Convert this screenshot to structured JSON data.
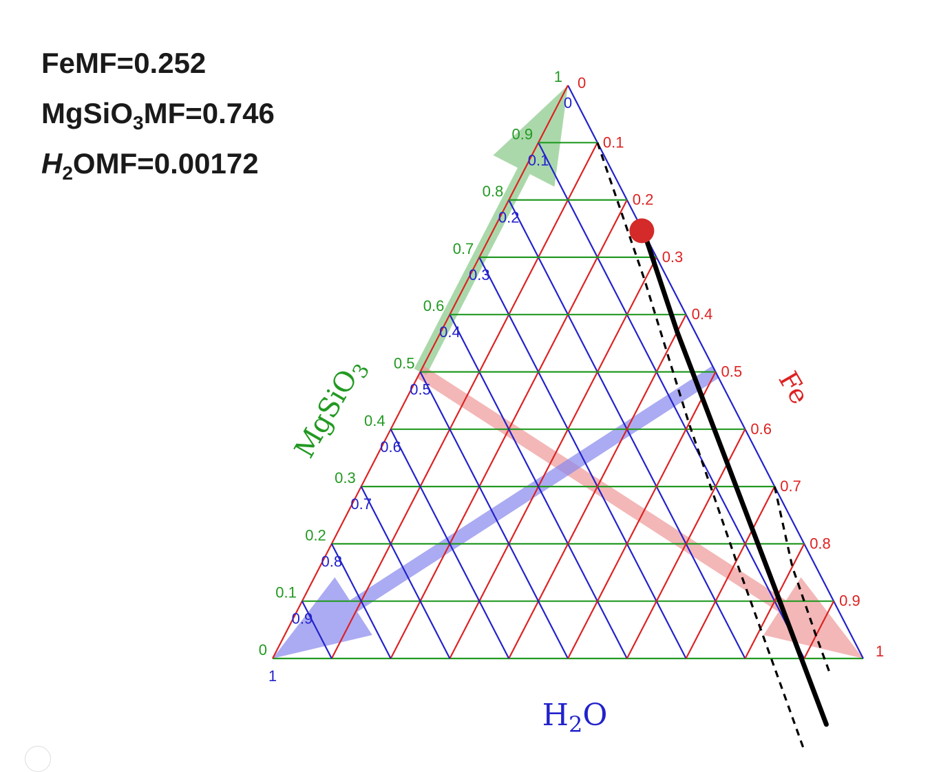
{
  "readout": {
    "fe_label": "FeMF=",
    "fe_value": "0.252",
    "mg_label_main": "MgSiO",
    "mg_label_sub": "3",
    "mg_label_rest": "MF=",
    "mg_value": "0.746",
    "h2o_label_h": "H",
    "h2o_label_sub": "2",
    "h2o_label_rest": "OMF=",
    "h2o_value": "0.00172"
  },
  "chart_data": {
    "type": "ternary",
    "axes": {
      "MgSiO3": {
        "label": "MgSiO3",
        "label_main": "MgSiO",
        "label_sub": "3",
        "color": "#229922",
        "range": [
          0,
          1
        ]
      },
      "Fe": {
        "label": "Fe",
        "color": "#dd2222",
        "range": [
          0,
          1
        ]
      },
      "H2O": {
        "label": "H2O",
        "label_main": "H",
        "label_sub": "2",
        "label_rest": "O",
        "color": "#2222cc",
        "range": [
          0,
          1
        ]
      }
    },
    "ticks": {
      "MgSiO3": [
        "0",
        "0.1",
        "0.2",
        "0.3",
        "0.4",
        "0.5",
        "0.6",
        "0.7",
        "0.8",
        "0.9",
        "1"
      ],
      "Fe": [
        "0",
        "0.1",
        "0.2",
        "0.3",
        "0.4",
        "0.5",
        "0.6",
        "0.7",
        "0.8",
        "0.9",
        "1"
      ],
      "H2O": [
        "1",
        "0.9",
        "0.8",
        "0.7",
        "0.6",
        "0.5",
        "0.4",
        "0.3",
        "0.2",
        "0.1",
        "0"
      ]
    },
    "grid": true,
    "point": {
      "MgSiO3": 0.746,
      "Fe": 0.252,
      "H2O": 0.00172,
      "color": "#d42a2a"
    },
    "solid_curve": [
      {
        "H2O": 0.0,
        "Fe": 0.26
      },
      {
        "H2O": 0.03,
        "Fe": 0.4
      },
      {
        "H2O": 0.06,
        "Fe": 0.6
      },
      {
        "H2O": 0.09,
        "Fe": 0.8
      },
      {
        "H2O": 0.12,
        "Fe": 0.995
      }
    ],
    "dashed_curves": [
      [
        {
          "H2O": 0.0,
          "Fe": 0.1
        },
        {
          "H2O": 0.04,
          "Fe": 0.3
        },
        {
          "H2O": 0.09,
          "Fe": 0.5
        },
        {
          "H2O": 0.13,
          "Fe": 0.7
        },
        {
          "H2O": 0.18,
          "Fe": 0.98
        }
      ],
      [
        {
          "H2O": 0.0,
          "Fe": 0.7
        },
        {
          "H2O": 0.04,
          "Fe": 0.8
        },
        {
          "H2O": 0.06,
          "Fe": 0.9
        },
        {
          "H2O": 0.07,
          "Fe": 0.96
        }
      ]
    ],
    "arrows": [
      {
        "axis": "MgSiO3",
        "color": "#88c888",
        "from": {
          "H2O": 0.5,
          "Fe": 0.0
        },
        "to": {
          "H2O": 0.0,
          "Fe": 0.0
        }
      },
      {
        "axis": "Fe",
        "color": "#ee9999",
        "from": {
          "H2O": 0.5,
          "Fe": 0.0
        },
        "to": {
          "H2O": 0.0,
          "Fe": 1.0
        }
      },
      {
        "axis": "H2O",
        "color": "#8888ee",
        "from": {
          "H2O": 0.0,
          "Fe": 0.5
        },
        "to": {
          "H2O": 1.0,
          "Fe": 0.0
        }
      }
    ]
  }
}
